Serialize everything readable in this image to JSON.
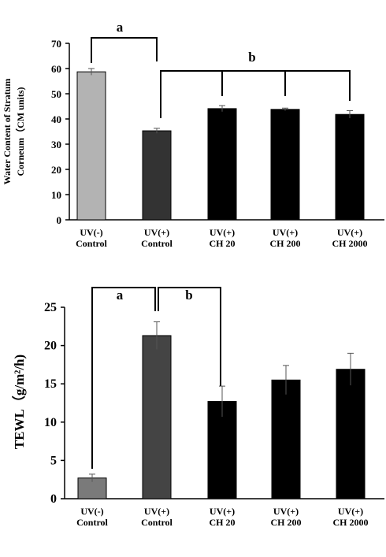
{
  "chart_data": [
    {
      "type": "bar",
      "ylabel": [
        "Water Content of Stratum",
        "Corneum（CM units)"
      ],
      "categories": [
        [
          "UV(-)",
          "Control"
        ],
        [
          "UV(+)",
          "Control"
        ],
        [
          "UV(+)",
          "CH 20"
        ],
        [
          "UV(+)",
          "CH 200"
        ],
        [
          "UV(+)",
          "CH 2000"
        ]
      ],
      "values": [
        58.7,
        35.3,
        44.1,
        43.8,
        41.8
      ],
      "errors": [
        1.3,
        1.0,
        1.2,
        0.5,
        1.5
      ],
      "colors": [
        "#b3b3b3",
        "#333333",
        "#000000",
        "#000000",
        "#000000"
      ],
      "ylim": [
        0,
        70
      ],
      "yticks": [
        0,
        10,
        20,
        30,
        40,
        50,
        60,
        70
      ],
      "annotations": [
        {
          "text": "a"
        },
        {
          "text": "b"
        }
      ]
    },
    {
      "type": "bar",
      "ylabel": "TEWL（g/m²/h)",
      "categories": [
        [
          "UV(-)",
          "Control"
        ],
        [
          "UV(+)",
          "Control"
        ],
        [
          "UV(+)",
          "CH 20"
        ],
        [
          "UV(+)",
          "CH 200"
        ],
        [
          "UV(+)",
          "CH 2000"
        ]
      ],
      "values": [
        2.7,
        21.3,
        12.7,
        15.5,
        16.9
      ],
      "errors": [
        0.5,
        1.8,
        2.0,
        1.9,
        2.1
      ],
      "colors": [
        "#7a7a7a",
        "#444444",
        "#000000",
        "#000000",
        "#000000"
      ],
      "ylim": [
        0,
        25
      ],
      "yticks": [
        0,
        5,
        10,
        15,
        20,
        25
      ],
      "annotations": [
        {
          "text": "a"
        },
        {
          "text": "b"
        }
      ]
    }
  ]
}
